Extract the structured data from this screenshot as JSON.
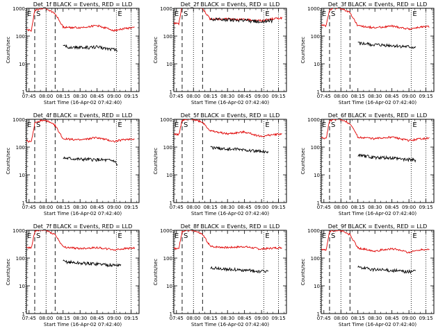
{
  "figure": {
    "type": "multi-panel time-series plot",
    "series_colors": {
      "events": "#000000",
      "lld": "#e00000"
    }
  },
  "chart_data": [
    {
      "type": "line",
      "title": "Det_1f BLACK = Events, RED = LLD",
      "xlabel": "Start Time (16-Apr-02 07:42:40)",
      "ylabel": "Counts/sec",
      "yscale": "log",
      "ylim": [
        1,
        1000
      ],
      "x_ticks": [
        "07:45",
        "08:00",
        "08:15",
        "08:30",
        "08:45",
        "09:00",
        "09:15"
      ],
      "y_ticks": [
        "1",
        "10",
        "100",
        "1000"
      ],
      "markers": [
        {
          "label": "E",
          "time": "07:42",
          "style": "dotted"
        },
        {
          "label": "S",
          "time": "07:50",
          "style": "dashed"
        },
        {
          "label": "",
          "time": "08:00",
          "style": "dotted"
        },
        {
          "label": "",
          "time": "08:08",
          "style": "dashed"
        },
        {
          "label": "E",
          "time": "09:02",
          "style": "dotted"
        },
        {
          "label": "",
          "time": "09:15",
          "style": "dotted"
        }
      ],
      "series": [
        {
          "name": "LLD",
          "color": "#e00000",
          "x": [
            "07:42",
            "07:47",
            "07:50",
            "07:55",
            "08:00",
            "08:08",
            "08:15",
            "08:30",
            "08:45",
            "09:00",
            "09:10",
            "09:18"
          ],
          "y": [
            170,
            160,
            800,
            1000,
            1000,
            650,
            210,
            200,
            240,
            160,
            190,
            200
          ]
        },
        {
          "name": "Events",
          "color": "#000000",
          "x": [
            "08:15",
            "08:30",
            "08:45",
            "09:00",
            "09:03"
          ],
          "y": [
            42,
            38,
            40,
            33,
            30
          ]
        }
      ]
    },
    {
      "type": "line",
      "title": "Det_2f BLACK = Events, RED = LLD",
      "xlabel": "Start Time (16-Apr-02 07:42:40)",
      "ylabel": "Counts/sec",
      "yscale": "log",
      "ylim": [
        1,
        1000
      ],
      "x_ticks": [
        "07:45",
        "08:00",
        "08:15",
        "08:30",
        "08:45",
        "09:00",
        "09:15"
      ],
      "y_ticks": [
        "1",
        "10",
        "100",
        "1000"
      ],
      "markers": [
        {
          "label": "E",
          "time": "07:42",
          "style": "dotted"
        },
        {
          "label": "S",
          "time": "07:50",
          "style": "dashed"
        },
        {
          "label": "",
          "time": "08:00",
          "style": "dotted"
        },
        {
          "label": "",
          "time": "08:08",
          "style": "dashed"
        },
        {
          "label": "E",
          "time": "09:02",
          "style": "dotted"
        },
        {
          "label": "",
          "time": "09:15",
          "style": "dotted"
        }
      ],
      "series": [
        {
          "name": "LLD",
          "color": "#e00000",
          "x": [
            "07:42",
            "07:47",
            "07:50",
            "07:55",
            "08:00",
            "08:08",
            "08:15",
            "08:30",
            "08:45",
            "09:00",
            "09:10",
            "09:18"
          ],
          "y": [
            300,
            280,
            1200,
            1300,
            1300,
            1000,
            400,
            420,
            390,
            360,
            420,
            450
          ]
        },
        {
          "name": "Events",
          "color": "#000000",
          "x": [
            "08:15",
            "08:30",
            "08:45",
            "09:00",
            "09:10"
          ],
          "y": [
            400,
            390,
            360,
            330,
            360
          ]
        }
      ]
    },
    {
      "type": "line",
      "title": "Det_3f BLACK = Events, RED = LLD",
      "xlabel": "Start Time (16-Apr-02 07:42:40)",
      "ylabel": "Counts/sec",
      "yscale": "log",
      "ylim": [
        1,
        1000
      ],
      "x_ticks": [
        "07:45",
        "08:00",
        "08:15",
        "08:30",
        "08:45",
        "09:00",
        "09:15"
      ],
      "y_ticks": [
        "1",
        "10",
        "100",
        "1000"
      ],
      "markers": [
        {
          "label": "E",
          "time": "07:42",
          "style": "dotted"
        },
        {
          "label": "S",
          "time": "07:50",
          "style": "dashed"
        },
        {
          "label": "",
          "time": "08:00",
          "style": "dotted"
        },
        {
          "label": "",
          "time": "08:08",
          "style": "dashed"
        },
        {
          "label": "E",
          "time": "09:02",
          "style": "dotted"
        },
        {
          "label": "",
          "time": "09:15",
          "style": "dotted"
        }
      ],
      "series": [
        {
          "name": "LLD",
          "color": "#e00000",
          "x": [
            "07:42",
            "07:47",
            "07:50",
            "07:55",
            "08:00",
            "08:08",
            "08:15",
            "08:30",
            "08:45",
            "09:00",
            "09:10",
            "09:18"
          ],
          "y": [
            250,
            230,
            900,
            1000,
            1000,
            700,
            230,
            200,
            230,
            180,
            210,
            220
          ]
        },
        {
          "name": "Events",
          "color": "#000000",
          "x": [
            "08:15",
            "08:30",
            "08:45",
            "09:00",
            "09:06"
          ],
          "y": [
            55,
            48,
            45,
            40,
            38
          ]
        }
      ]
    },
    {
      "type": "line",
      "title": "Det_4f BLACK = Events, RED = LLD",
      "xlabel": "Start Time (16-Apr-02 07:42:40)",
      "ylabel": "Counts/sec",
      "yscale": "log",
      "ylim": [
        1,
        1000
      ],
      "x_ticks": [
        "07:45",
        "08:00",
        "08:15",
        "08:30",
        "08:45",
        "09:00",
        "09:15"
      ],
      "y_ticks": [
        "1",
        "10",
        "100",
        "1000"
      ],
      "markers": [
        {
          "label": "E",
          "time": "07:42",
          "style": "dotted"
        },
        {
          "label": "S",
          "time": "07:50",
          "style": "dashed"
        },
        {
          "label": "",
          "time": "08:00",
          "style": "dotted"
        },
        {
          "label": "",
          "time": "08:08",
          "style": "dashed"
        },
        {
          "label": "E",
          "time": "09:02",
          "style": "dotted"
        },
        {
          "label": "",
          "time": "09:15",
          "style": "dotted"
        }
      ],
      "series": [
        {
          "name": "LLD",
          "color": "#e00000",
          "x": [
            "07:42",
            "07:47",
            "07:50",
            "07:55",
            "08:00",
            "08:08",
            "08:15",
            "08:30",
            "08:45",
            "09:00",
            "09:10",
            "09:18"
          ],
          "y": [
            170,
            150,
            700,
            900,
            900,
            600,
            200,
            180,
            220,
            160,
            190,
            200
          ]
        },
        {
          "name": "Events",
          "color": "#000000",
          "x": [
            "08:15",
            "08:30",
            "08:45",
            "09:00",
            "09:03"
          ],
          "y": [
            40,
            36,
            35,
            32,
            22
          ]
        }
      ]
    },
    {
      "type": "line",
      "title": "Det_5f BLACK = Events, RED = LLD",
      "xlabel": "Start Time (16-Apr-02 07:42:40)",
      "ylabel": "Counts/sec",
      "yscale": "log",
      "ylim": [
        1,
        1000
      ],
      "x_ticks": [
        "07:45",
        "08:00",
        "08:15",
        "08:30",
        "08:45",
        "09:00",
        "09:15"
      ],
      "y_ticks": [
        "1",
        "10",
        "100",
        "1000"
      ],
      "markers": [
        {
          "label": "E",
          "time": "07:42",
          "style": "dotted"
        },
        {
          "label": "S",
          "time": "07:50",
          "style": "dashed"
        },
        {
          "label": "",
          "time": "08:00",
          "style": "dotted"
        },
        {
          "label": "",
          "time": "08:08",
          "style": "dashed"
        },
        {
          "label": "E",
          "time": "09:02",
          "style": "dotted"
        },
        {
          "label": "",
          "time": "09:15",
          "style": "dotted"
        }
      ],
      "series": [
        {
          "name": "LLD",
          "color": "#e00000",
          "x": [
            "07:42",
            "07:47",
            "07:50",
            "07:55",
            "08:00",
            "08:08",
            "08:15",
            "08:30",
            "08:45",
            "09:00",
            "09:10",
            "09:18"
          ],
          "y": [
            300,
            280,
            900,
            1000,
            1000,
            800,
            380,
            300,
            350,
            240,
            280,
            300
          ]
        },
        {
          "name": "Events",
          "color": "#000000",
          "x": [
            "08:15",
            "08:30",
            "08:45",
            "09:00",
            "09:06"
          ],
          "y": [
            95,
            85,
            80,
            68,
            60
          ]
        }
      ]
    },
    {
      "type": "line",
      "title": "Det_6f BLACK = Events, RED = LLD",
      "xlabel": "Start Time (16-Apr-02 07:42:40)",
      "ylabel": "Counts/sec",
      "yscale": "log",
      "ylim": [
        1,
        1000
      ],
      "x_ticks": [
        "07:45",
        "08:00",
        "08:15",
        "08:30",
        "08:45",
        "09:00",
        "09:15"
      ],
      "y_ticks": [
        "1",
        "10",
        "100",
        "1000"
      ],
      "markers": [
        {
          "label": "E",
          "time": "07:42",
          "style": "dotted"
        },
        {
          "label": "S",
          "time": "07:50",
          "style": "dashed"
        },
        {
          "label": "",
          "time": "08:00",
          "style": "dotted"
        },
        {
          "label": "",
          "time": "08:08",
          "style": "dashed"
        },
        {
          "label": "E",
          "time": "09:02",
          "style": "dotted"
        },
        {
          "label": "",
          "time": "09:15",
          "style": "dotted"
        }
      ],
      "series": [
        {
          "name": "LLD",
          "color": "#e00000",
          "x": [
            "07:42",
            "07:47",
            "07:50",
            "07:55",
            "08:00",
            "08:08",
            "08:15",
            "08:30",
            "08:45",
            "09:00",
            "09:10",
            "09:18"
          ],
          "y": [
            220,
            200,
            900,
            1000,
            1000,
            700,
            230,
            200,
            230,
            170,
            200,
            210
          ]
        },
        {
          "name": "Events",
          "color": "#000000",
          "x": [
            "08:15",
            "08:30",
            "08:45",
            "09:00",
            "09:06"
          ],
          "y": [
            50,
            42,
            40,
            35,
            33
          ]
        }
      ]
    },
    {
      "type": "line",
      "title": "Det_7f BLACK = Events, RED = LLD",
      "xlabel": "Start Time (16-Apr-02 07:42:40)",
      "ylabel": "Counts/sec",
      "yscale": "log",
      "ylim": [
        1,
        1000
      ],
      "x_ticks": [
        "07:45",
        "08:00",
        "08:15",
        "08:30",
        "08:45",
        "09:00",
        "09:15"
      ],
      "y_ticks": [
        "1",
        "10",
        "100",
        "1000"
      ],
      "markers": [
        {
          "label": "E",
          "time": "07:42",
          "style": "dotted"
        },
        {
          "label": "S",
          "time": "07:50",
          "style": "dashed"
        },
        {
          "label": "",
          "time": "08:00",
          "style": "dotted"
        },
        {
          "label": "",
          "time": "08:08",
          "style": "dashed"
        },
        {
          "label": "E",
          "time": "09:02",
          "style": "dotted"
        },
        {
          "label": "",
          "time": "09:15",
          "style": "dotted"
        }
      ],
      "series": [
        {
          "name": "LLD",
          "color": "#e00000",
          "x": [
            "07:42",
            "07:47",
            "07:50",
            "07:55",
            "08:00",
            "08:08",
            "08:15",
            "08:30",
            "08:45",
            "09:00",
            "09:10",
            "09:18"
          ],
          "y": [
            250,
            230,
            900,
            1000,
            1000,
            700,
            250,
            220,
            240,
            200,
            220,
            230
          ]
        },
        {
          "name": "Events",
          "color": "#000000",
          "x": [
            "08:15",
            "08:30",
            "08:45",
            "09:00",
            "09:06"
          ],
          "y": [
            75,
            65,
            62,
            55,
            58
          ]
        }
      ]
    },
    {
      "type": "line",
      "title": "Det_8f BLACK = Events, RED = LLD",
      "xlabel": "Start Time (16-Apr-02 07:42:40)",
      "ylabel": "Counts/sec",
      "yscale": "log",
      "ylim": [
        1,
        1000
      ],
      "x_ticks": [
        "07:45",
        "08:00",
        "08:15",
        "08:30",
        "08:45",
        "09:00",
        "09:15"
      ],
      "y_ticks": [
        "1",
        "10",
        "100",
        "1000"
      ],
      "markers": [
        {
          "label": "E",
          "time": "07:42",
          "style": "dotted"
        },
        {
          "label": "S",
          "time": "07:50",
          "style": "dashed"
        },
        {
          "label": "",
          "time": "08:00",
          "style": "dotted"
        },
        {
          "label": "",
          "time": "08:08",
          "style": "dashed"
        },
        {
          "label": "E",
          "time": "09:02",
          "style": "dotted"
        },
        {
          "label": "",
          "time": "09:15",
          "style": "dotted"
        }
      ],
      "series": [
        {
          "name": "LLD",
          "color": "#e00000",
          "x": [
            "07:42",
            "07:47",
            "07:50",
            "07:55",
            "08:00",
            "08:08",
            "08:15",
            "08:30",
            "08:45",
            "09:00",
            "09:10",
            "09:18"
          ],
          "y": [
            230,
            210,
            900,
            1000,
            1000,
            700,
            260,
            240,
            260,
            210,
            230,
            240
          ]
        },
        {
          "name": "Events",
          "color": "#000000",
          "x": [
            "08:15",
            "08:30",
            "08:45",
            "09:00",
            "09:06"
          ],
          "y": [
            45,
            40,
            36,
            33,
            35
          ]
        }
      ]
    },
    {
      "type": "line",
      "title": "Det_9f BLACK = Events, RED = LLD",
      "xlabel": "Start Time (16-Apr-02 07:42:40)",
      "ylabel": "Counts/sec",
      "yscale": "log",
      "ylim": [
        1,
        1000
      ],
      "x_ticks": [
        "07:45",
        "08:00",
        "08:15",
        "08:30",
        "08:45",
        "09:00",
        "09:15"
      ],
      "y_ticks": [
        "1",
        "10",
        "100",
        "1000"
      ],
      "markers": [
        {
          "label": "E",
          "time": "07:42",
          "style": "dotted"
        },
        {
          "label": "S",
          "time": "07:50",
          "style": "dashed"
        },
        {
          "label": "",
          "time": "08:00",
          "style": "dotted"
        },
        {
          "label": "",
          "time": "08:08",
          "style": "dashed"
        },
        {
          "label": "E",
          "time": "09:02",
          "style": "dotted"
        },
        {
          "label": "",
          "time": "09:15",
          "style": "dotted"
        }
      ],
      "series": [
        {
          "name": "LLD",
          "color": "#e00000",
          "x": [
            "07:42",
            "07:47",
            "07:50",
            "07:55",
            "08:00",
            "08:08",
            "08:15",
            "08:30",
            "08:45",
            "09:00",
            "09:10",
            "09:18"
          ],
          "y": [
            210,
            190,
            900,
            1000,
            1000,
            700,
            230,
            180,
            220,
            160,
            200,
            210
          ]
        },
        {
          "name": "Events",
          "color": "#000000",
          "x": [
            "08:15",
            "08:30",
            "08:45",
            "09:00",
            "09:06"
          ],
          "y": [
            45,
            38,
            36,
            32,
            36
          ]
        }
      ]
    }
  ]
}
